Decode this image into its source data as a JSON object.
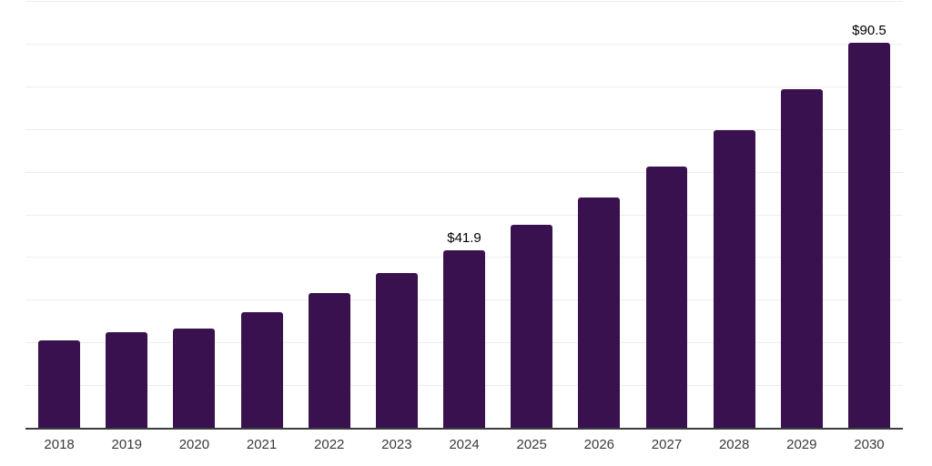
{
  "chart_data": {
    "type": "bar",
    "title": "",
    "categories": [
      "2018",
      "2019",
      "2020",
      "2021",
      "2022",
      "2023",
      "2024",
      "2025",
      "2026",
      "2027",
      "2028",
      "2029",
      "2030"
    ],
    "values": [
      20.7,
      22.6,
      23.4,
      27.4,
      31.7,
      36.4,
      41.9,
      47.7,
      54.2,
      61.5,
      70.0,
      79.5,
      90.5
    ],
    "data_labels": [
      {
        "category": "2024",
        "label": "$41.9"
      },
      {
        "category": "2030",
        "label": "$90.5"
      }
    ],
    "xlabel": "",
    "ylabel": "",
    "ylim": [
      0,
      100
    ],
    "grid": {
      "horizontal": true,
      "interval": 10,
      "y_axis_tick_labels_visible": false
    },
    "legend": "none",
    "colors": {
      "bar": "#38114E",
      "gridline": "#ededed",
      "axis_line": "#3d3d3d",
      "value_label": "#000000",
      "tick_label": "#3a3a3a",
      "background": "#ffffff"
    }
  }
}
